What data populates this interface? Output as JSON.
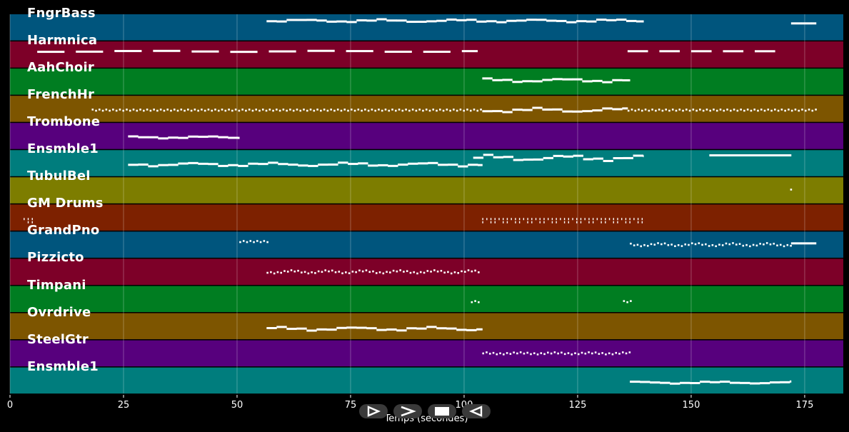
{
  "colors": {
    "background": "#000000",
    "note": "#ffffff",
    "grid": "#ffffff",
    "track_cycle": [
      "#00557d",
      "#7d0028",
      "#007d21",
      "#7d5500",
      "#57007d",
      "#007d7d",
      "#7d7d00",
      "#7d2100"
    ]
  },
  "tracks": [
    {
      "name": "FngrBass",
      "color": "#00557d"
    },
    {
      "name": "Harmnica",
      "color": "#7d0028"
    },
    {
      "name": "AahChoir",
      "color": "#007d21"
    },
    {
      "name": "FrenchHr",
      "color": "#7d5500"
    },
    {
      "name": "Trombone",
      "color": "#57007d"
    },
    {
      "name": "Ensmble1",
      "color": "#007d7d"
    },
    {
      "name": "TubulBel",
      "color": "#7d7d00"
    },
    {
      "name": "GM Drums",
      "color": "#7d2100"
    },
    {
      "name": "GrandPno",
      "color": "#00557d"
    },
    {
      "name": "Pizzicto",
      "color": "#7d0028"
    },
    {
      "name": "Timpani",
      "color": "#007d21"
    },
    {
      "name": "Ovrdrive",
      "color": "#7d5500"
    },
    {
      "name": "SteelGtr",
      "color": "#57007d"
    },
    {
      "name": "Ensmble1",
      "color": "#007d7d"
    }
  ],
  "timeline": {
    "xlabel": "Temps (secondes)",
    "xlim": [
      0,
      183.5
    ],
    "ticks": [
      {
        "value": 0,
        "label": "0"
      },
      {
        "value": 25,
        "label": "25"
      },
      {
        "value": 50,
        "label": "50"
      },
      {
        "value": 75,
        "label": "75"
      },
      {
        "value": 100,
        "label": "100"
      },
      {
        "value": 125,
        "label": "125"
      },
      {
        "value": 150,
        "label": "150"
      },
      {
        "value": 175,
        "label": "175"
      }
    ]
  },
  "notes": [
    {
      "track": 0,
      "pattern": "line",
      "start": 56.5,
      "end": 139.5,
      "level": 0.25,
      "wave": 0.04
    },
    {
      "track": 0,
      "pattern": "line",
      "start": 172,
      "end": 177.5,
      "level": 0.35,
      "wave": 0
    },
    {
      "track": 1,
      "pattern": "dashes",
      "start": 6,
      "end": 103,
      "level": 0.38,
      "dash": 6,
      "gap": 2.5,
      "wave": 0.02
    },
    {
      "track": 1,
      "pattern": "dashes",
      "start": 136,
      "end": 169.5,
      "level": 0.38,
      "dash": 4.5,
      "gap": 2.5,
      "wave": 0.02
    },
    {
      "track": 2,
      "pattern": "line",
      "start": 104,
      "end": 136.5,
      "level": 0.45,
      "wave": 0.05
    },
    {
      "track": 3,
      "pattern": "dotted",
      "start": 18,
      "end": 104,
      "level": 0.55,
      "wave": 0
    },
    {
      "track": 3,
      "pattern": "line",
      "start": 104,
      "end": 136,
      "level": 0.55,
      "wave": 0.06
    },
    {
      "track": 3,
      "pattern": "dotted",
      "start": 136,
      "end": 177.5,
      "level": 0.55,
      "wave": 0
    },
    {
      "track": 4,
      "pattern": "line",
      "start": 26,
      "end": 50.5,
      "level": 0.55,
      "wave": 0.03
    },
    {
      "track": 5,
      "pattern": "line",
      "start": 26,
      "end": 104,
      "level": 0.55,
      "wave": 0.05
    },
    {
      "track": 5,
      "pattern": "line",
      "start": 102,
      "end": 139.5,
      "level": 0.3,
      "wave": 0.08
    },
    {
      "track": 5,
      "pattern": "line",
      "start": 154,
      "end": 172,
      "level": 0.2,
      "wave": 0
    },
    {
      "track": 6,
      "pattern": "dotted",
      "start": 171.8,
      "end": 172.3,
      "level": 0.45,
      "wave": 0
    },
    {
      "track": 7,
      "pattern": "ticks",
      "start": 3,
      "end": 5.5,
      "level": 0.6,
      "wave": 0
    },
    {
      "track": 7,
      "pattern": "ticks",
      "start": 104,
      "end": 139.5,
      "level": 0.6,
      "wave": 0
    },
    {
      "track": 8,
      "pattern": "dotted",
      "start": 50.5,
      "end": 56.5,
      "level": 0.38,
      "wave": 0
    },
    {
      "track": 8,
      "pattern": "dotted",
      "start": 136.5,
      "end": 172,
      "level": 0.5,
      "wave": 0.04
    },
    {
      "track": 8,
      "pattern": "line",
      "start": 172,
      "end": 177.5,
      "level": 0.45,
      "wave": 0
    },
    {
      "track": 9,
      "pattern": "dotted",
      "start": 56.5,
      "end": 103.5,
      "level": 0.5,
      "wave": 0.04
    },
    {
      "track": 10,
      "pattern": "dotted",
      "start": 101.5,
      "end": 103,
      "level": 0.6,
      "wave": 0
    },
    {
      "track": 10,
      "pattern": "dotted",
      "start": 135,
      "end": 136.5,
      "level": 0.6,
      "wave": 0
    },
    {
      "track": 11,
      "pattern": "line",
      "start": 56.5,
      "end": 104,
      "level": 0.6,
      "wave": 0.05
    },
    {
      "track": 12,
      "pattern": "dotted",
      "start": 104,
      "end": 136.5,
      "level": 0.5,
      "wave": 0.02
    },
    {
      "track": 13,
      "pattern": "line",
      "start": 136.5,
      "end": 172,
      "level": 0.58,
      "wave": 0.03
    }
  ],
  "controls": [
    {
      "name": "play-button",
      "icon": "play-outline-icon"
    },
    {
      "name": "forward-button",
      "icon": "chevron-right-icon"
    },
    {
      "name": "stop-button",
      "icon": "stop-square-icon"
    },
    {
      "name": "back-button",
      "icon": "play-reverse-outline-icon"
    }
  ]
}
